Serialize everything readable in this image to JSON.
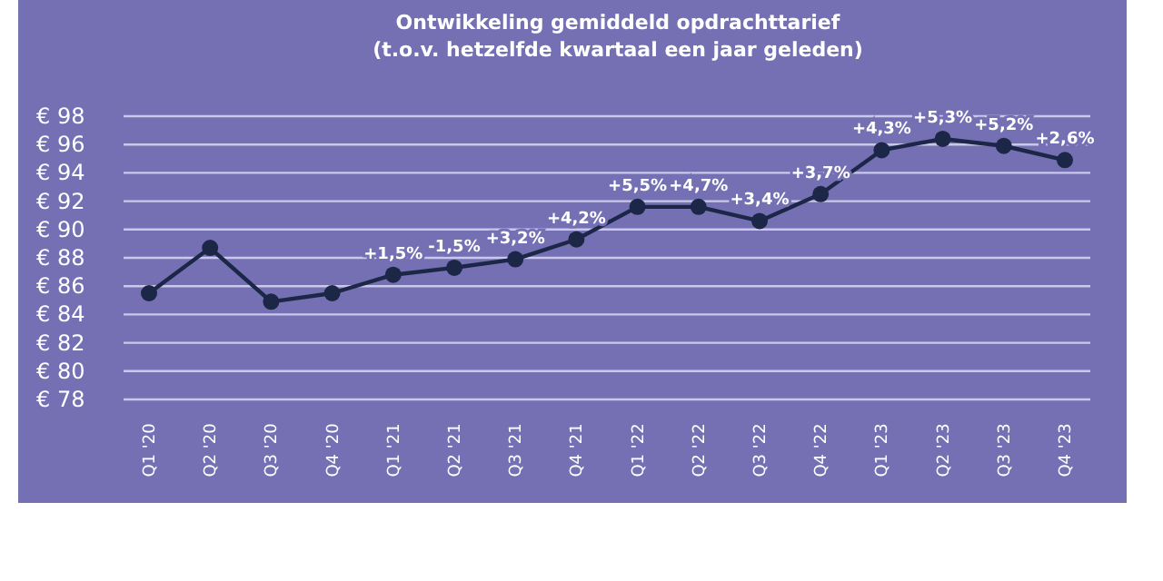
{
  "chart_data": {
    "type": "line",
    "title": "Ontwikkeling gemiddeld opdrachttarief",
    "subtitle": "(t.o.v. hetzelfde kwartaal een jaar geleden)",
    "categories": [
      "Q1 '20",
      "Q2 '20",
      "Q3 '20",
      "Q4 '20",
      "Q1 '21",
      "Q2 '21",
      "Q3 '21",
      "Q4 '21",
      "Q1 '22",
      "Q2 '22",
      "Q3 '22",
      "Q4 '22",
      "Q1 '23",
      "Q2 '23",
      "Q3 '23",
      "Q4 '23"
    ],
    "series": [
      {
        "color": "#1c2747",
        "values": [
          85.5,
          88.7,
          84.9,
          85.5,
          86.8,
          87.3,
          87.9,
          89.3,
          91.6,
          91.6,
          90.6,
          92.5,
          95.6,
          96.4,
          95.9,
          94.9
        ]
      }
    ],
    "annotations": [
      {
        "text": "+1,5%",
        "x": "Q1 '21",
        "y": 86.8
      },
      {
        "text": "-1,5%",
        "x": "Q2 '21",
        "y": 87.3
      },
      {
        "text": "+3,2%",
        "x": "Q3 '21",
        "y": 87.9
      },
      {
        "text": "+4,2%",
        "x": "Q4 '21",
        "y": 89.3
      },
      {
        "text": "+5,5%",
        "x": "Q1 '22",
        "y": 91.6
      },
      {
        "text": "+4,7%",
        "x": "Q2 '22",
        "y": 91.6
      },
      {
        "text": "+3,4%",
        "x": "Q3 '22",
        "y": 90.6
      },
      {
        "text": "+3,7%",
        "x": "Q4 '22",
        "y": 92.5
      },
      {
        "text": "+4,3%",
        "x": "Q1 '23",
        "y": 95.6
      },
      {
        "text": "+5,3%",
        "x": "Q2 '23",
        "y": 96.4
      },
      {
        "text": "+5,2%",
        "x": "Q3 '23",
        "y": 95.9
      },
      {
        "text": "+2,6%",
        "x": "Q4 '23",
        "y": 94.9
      }
    ],
    "ylim": [
      78,
      98
    ],
    "yticks": [
      {
        "value": 78,
        "label": "€ 78"
      },
      {
        "value": 80,
        "label": "€ 80"
      },
      {
        "value": 82,
        "label": "€ 82"
      },
      {
        "value": 84,
        "label": "€ 84"
      },
      {
        "value": 86,
        "label": "€ 86"
      },
      {
        "value": 88,
        "label": "€ 88"
      },
      {
        "value": 90,
        "label": "€ 90"
      },
      {
        "value": 92,
        "label": "€ 92"
      },
      {
        "value": 94,
        "label": "€ 94"
      },
      {
        "value": 96,
        "label": "€ 96"
      },
      {
        "value": 98,
        "label": "€ 98"
      }
    ],
    "grid": "y",
    "marker": "circle",
    "line_style": "solid"
  }
}
